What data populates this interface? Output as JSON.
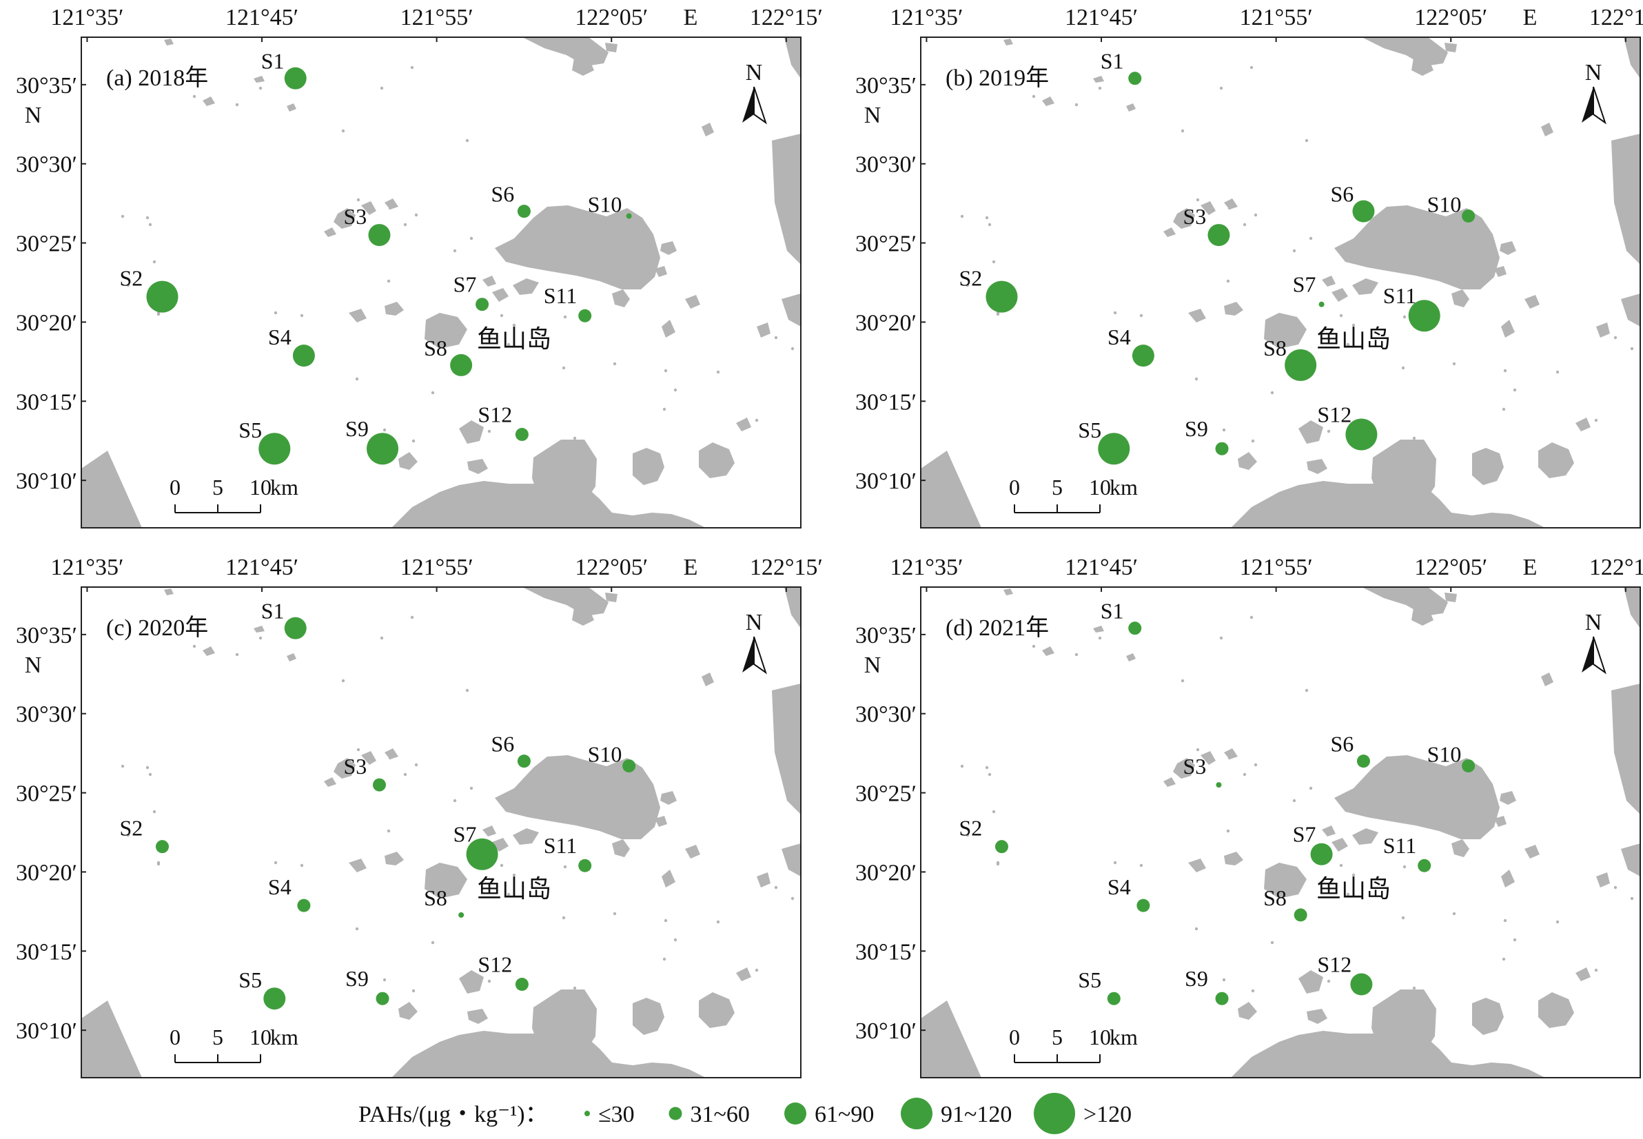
{
  "figure": {
    "lon_ticks": [
      "121°35′",
      "121°45′",
      "121°55′",
      "122°05′",
      "122°15′"
    ],
    "lon_hemisphere": "E",
    "lat_ticks": [
      "30°35′",
      "30°30′",
      "30°25′",
      "30°20′",
      "30°15′",
      "30°10′"
    ],
    "lat_hemisphere": "N",
    "north_arrow_label": "N",
    "island_label": "鱼山岛",
    "scale_bar": {
      "labels": [
        "0",
        "5",
        "10"
      ],
      "unit": "km"
    },
    "colors": {
      "marker": "#3f9e3c",
      "land": "#b4b4b4",
      "frame": "#222222"
    }
  },
  "stations": [
    {
      "id": "S1",
      "lon": 121.782,
      "lat": 30.59
    },
    {
      "id": "S2",
      "lon": 121.655,
      "lat": 30.36
    },
    {
      "id": "S3",
      "lon": 121.862,
      "lat": 30.425
    },
    {
      "id": "S4",
      "lon": 121.79,
      "lat": 30.298
    },
    {
      "id": "S5",
      "lon": 121.762,
      "lat": 30.2
    },
    {
      "id": "S6",
      "lon": 122.0,
      "lat": 30.45
    },
    {
      "id": "S7",
      "lon": 121.96,
      "lat": 30.352
    },
    {
      "id": "S8",
      "lon": 121.94,
      "lat": 30.288
    },
    {
      "id": "S9",
      "lon": 121.865,
      "lat": 30.2
    },
    {
      "id": "S10",
      "lon": 122.1,
      "lat": 30.445
    },
    {
      "id": "S11",
      "lon": 122.058,
      "lat": 30.34
    },
    {
      "id": "S12",
      "lon": 121.998,
      "lat": 30.215
    }
  ],
  "legend": {
    "title": "PAHs/(μg・kg⁻¹)：",
    "classes": [
      "≤30",
      "31~60",
      "61~90",
      "91~120",
      ">120"
    ]
  },
  "chart_data": [
    {
      "type": "scatter",
      "title": "(a) 2018年",
      "categories": [
        "S1",
        "S2",
        "S3",
        "S4",
        "S5",
        "S6",
        "S7",
        "S8",
        "S9",
        "S10",
        "S11",
        "S12"
      ],
      "class_index": [
        2,
        3,
        2,
        2,
        3,
        1,
        1,
        2,
        3,
        0,
        1,
        1
      ]
    },
    {
      "type": "scatter",
      "title": "(b) 2019年",
      "categories": [
        "S1",
        "S2",
        "S3",
        "S4",
        "S5",
        "S6",
        "S7",
        "S8",
        "S9",
        "S10",
        "S11",
        "S12"
      ],
      "class_index": [
        1,
        3,
        2,
        2,
        3,
        2,
        0,
        3,
        1,
        1,
        3,
        3
      ]
    },
    {
      "type": "scatter",
      "title": "(c) 2020年",
      "categories": [
        "S1",
        "S2",
        "S3",
        "S4",
        "S5",
        "S6",
        "S7",
        "S8",
        "S9",
        "S10",
        "S11",
        "S12"
      ],
      "class_index": [
        2,
        1,
        1,
        1,
        2,
        1,
        3,
        0,
        1,
        1,
        1,
        1
      ]
    },
    {
      "type": "scatter",
      "title": "(d) 2021年",
      "categories": [
        "S1",
        "S2",
        "S3",
        "S4",
        "S5",
        "S6",
        "S7",
        "S8",
        "S9",
        "S10",
        "S11",
        "S12"
      ],
      "class_index": [
        1,
        1,
        0,
        1,
        1,
        1,
        2,
        1,
        1,
        1,
        1,
        2
      ]
    }
  ]
}
